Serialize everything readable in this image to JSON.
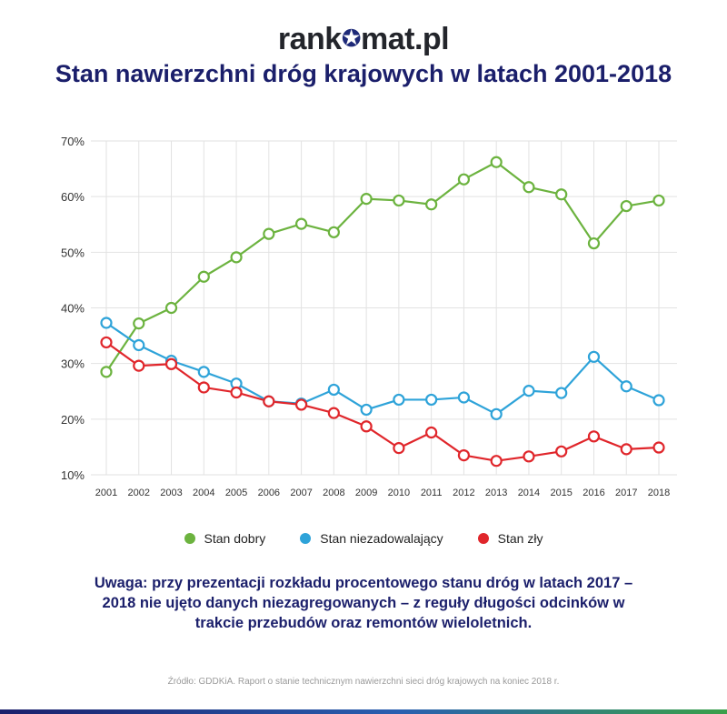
{
  "logo": {
    "left": "rank",
    "right": "mat.pl"
  },
  "page_title": "Stan nawierzchni dróg krajowych w latach 2001-2018",
  "note": "Uwaga: przy prezentacji rozkładu procentowego stanu dróg w latach 2017 – 2018 nie ujęto danych niezagregowanych – z reguły długości odcinków w trakcie przebudów oraz remontów wieloletnich.",
  "source": "Źródło: GDDKiA. Raport o stanie technicznym nawierzchni sieci dróg krajowych na koniec 2018 r.",
  "colors": {
    "title": "#1b1f6b",
    "green": "#6cb33f",
    "blue": "#2ea3d9",
    "red": "#e0262b",
    "grid": "#e2e2e2"
  },
  "chart_data": {
    "type": "line",
    "title": "Stan nawierzchni dróg krajowych w latach 2001-2018",
    "x": [
      "2001",
      "2002",
      "2003",
      "2004",
      "2005",
      "2006",
      "2007",
      "2008",
      "2009",
      "2010",
      "2011",
      "2012",
      "2013",
      "2014",
      "2015",
      "2016",
      "2017",
      "2018"
    ],
    "ylim": [
      10,
      70
    ],
    "yticks": [
      "10%",
      "20%",
      "30%",
      "40%",
      "50%",
      "60%",
      "70%"
    ],
    "grid": true,
    "legend_position": "bottom",
    "series": [
      {
        "name": "Stan dobry",
        "color": "#6cb33f",
        "values": [
          28.5,
          37.2,
          40.0,
          45.6,
          49.1,
          53.3,
          55.1,
          53.6,
          59.6,
          59.3,
          58.6,
          63.1,
          66.2,
          61.7,
          60.4,
          51.6,
          58.3,
          59.3
        ]
      },
      {
        "name": "Stan niezadowalający",
        "color": "#2ea3d9",
        "values": [
          37.3,
          33.3,
          30.5,
          28.5,
          26.4,
          23.2,
          22.8,
          25.3,
          21.7,
          23.5,
          23.5,
          23.9,
          20.9,
          25.1,
          24.7,
          31.2,
          25.9,
          23.4
        ]
      },
      {
        "name": "Stan zły",
        "color": "#e0262b",
        "values": [
          33.8,
          29.6,
          29.9,
          25.7,
          24.8,
          23.2,
          22.6,
          21.1,
          18.7,
          14.8,
          17.6,
          13.5,
          12.5,
          13.3,
          14.2,
          16.9,
          14.6,
          14.9
        ]
      }
    ]
  }
}
